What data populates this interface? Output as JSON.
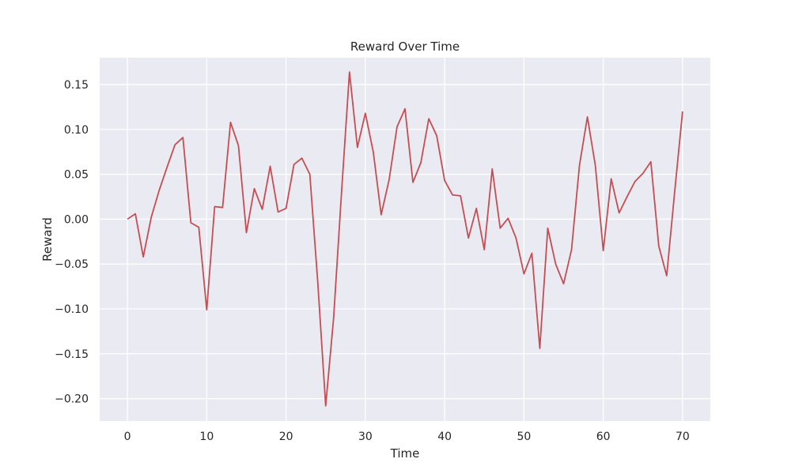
{
  "chart_data": {
    "type": "line",
    "title": "Reward Over Time",
    "xlabel": "Time",
    "ylabel": "Reward",
    "xlim": [
      -3.5,
      73.5
    ],
    "ylim": [
      -0.225,
      0.18
    ],
    "xticks": [
      0,
      10,
      20,
      30,
      40,
      50,
      60,
      70
    ],
    "yticks": [
      -0.2,
      -0.15,
      -0.1,
      -0.05,
      0.0,
      0.05,
      0.1,
      0.15
    ],
    "ytick_labels": [
      "−0.20",
      "−0.15",
      "−0.10",
      "−0.05",
      "0.00",
      "0.05",
      "0.10",
      "0.15"
    ],
    "xtick_labels": [
      "0",
      "10",
      "20",
      "30",
      "40",
      "50",
      "60",
      "70"
    ],
    "grid": true,
    "background": "#eaeaf2",
    "grid_color": "#ffffff",
    "series": [
      {
        "color": "#c44e52",
        "x": [
          0,
          1,
          2,
          3,
          4,
          5,
          6,
          7,
          8,
          9,
          10,
          11,
          12,
          13,
          14,
          15,
          16,
          17,
          18,
          19,
          20,
          21,
          22,
          23,
          24,
          25,
          26,
          27,
          28,
          29,
          30,
          31,
          32,
          33,
          34,
          35,
          36,
          37,
          38,
          39,
          40,
          41,
          42,
          43,
          44,
          45,
          46,
          47,
          48,
          49,
          50,
          51,
          52,
          53,
          54,
          55,
          56,
          57,
          58,
          59,
          60,
          61,
          62,
          63,
          64,
          65,
          66,
          67,
          68,
          69,
          70
        ],
        "values": [
          0.0,
          0.006,
          -0.042,
          0.002,
          0.032,
          0.058,
          0.083,
          0.091,
          -0.004,
          -0.009,
          -0.101,
          0.014,
          0.013,
          0.108,
          0.082,
          -0.015,
          0.034,
          0.011,
          0.059,
          0.008,
          0.012,
          0.061,
          0.068,
          0.05,
          -0.07,
          -0.208,
          -0.11,
          0.03,
          0.164,
          0.08,
          0.118,
          0.075,
          0.005,
          0.044,
          0.103,
          0.123,
          0.041,
          0.063,
          0.112,
          0.093,
          0.043,
          0.027,
          0.026,
          -0.021,
          0.012,
          -0.034,
          0.056,
          -0.01,
          0.001,
          -0.021,
          -0.061,
          -0.038,
          -0.144,
          -0.01,
          -0.05,
          -0.072,
          -0.034,
          0.06,
          0.114,
          0.06,
          -0.035,
          0.045,
          0.007,
          0.025,
          0.042,
          0.051,
          0.064,
          -0.03,
          -0.063,
          0.03,
          0.12
        ]
      }
    ]
  }
}
